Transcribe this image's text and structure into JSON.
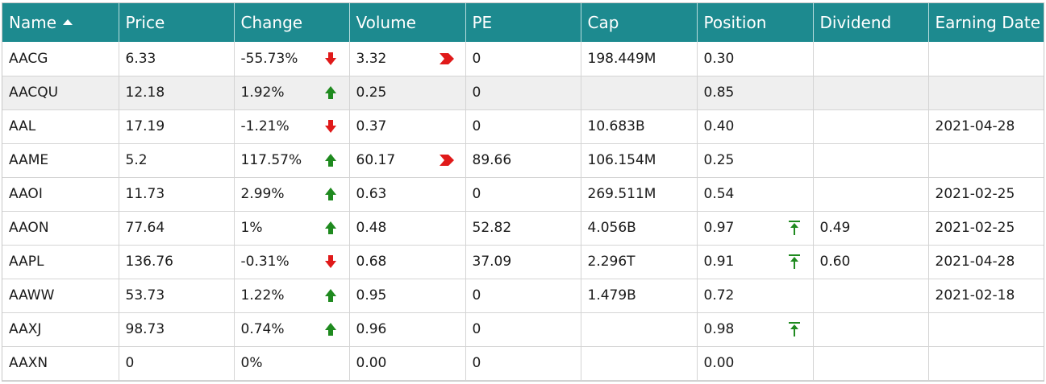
{
  "columns": [
    {
      "label": "Name",
      "sorted": "asc"
    },
    {
      "label": "Price"
    },
    {
      "label": "Change"
    },
    {
      "label": "Volume"
    },
    {
      "label": "PE"
    },
    {
      "label": "Cap"
    },
    {
      "label": "Position"
    },
    {
      "label": "Dividend"
    },
    {
      "label": "Earning Date"
    }
  ],
  "colors": {
    "header_bg": "#1d8a8f",
    "up": "#1f8a1f",
    "down": "#e01a1a",
    "selected_row": "#efefef"
  },
  "rows": [
    {
      "name": "AACG",
      "price": "6.33",
      "change": "-55.73%",
      "change_icon": "down-arrow-icon",
      "volume": "3.32",
      "volume_icon": "chevron-right-icon",
      "pe": "0",
      "cap": "198.449M",
      "position": "0.30",
      "position_icon": "",
      "dividend": "",
      "earning_date": ""
    },
    {
      "name": "AACQU",
      "price": "12.18",
      "change": "1.92%",
      "change_icon": "up-arrow-icon",
      "volume": "0.25",
      "volume_icon": "",
      "pe": "0",
      "cap": "",
      "position": "0.85",
      "position_icon": "",
      "dividend": "",
      "earning_date": "",
      "selected": true
    },
    {
      "name": "AAL",
      "price": "17.19",
      "change": "-1.21%",
      "change_icon": "down-arrow-icon",
      "volume": "0.37",
      "volume_icon": "",
      "pe": "0",
      "cap": "10.683B",
      "position": "0.40",
      "position_icon": "",
      "dividend": "",
      "earning_date": "2021-04-28"
    },
    {
      "name": "AAME",
      "price": "5.2",
      "change": "117.57%",
      "change_icon": "up-arrow-icon",
      "volume": "60.17",
      "volume_icon": "chevron-right-icon",
      "pe": "89.66",
      "cap": "106.154M",
      "position": "0.25",
      "position_icon": "",
      "dividend": "",
      "earning_date": ""
    },
    {
      "name": "AAOI",
      "price": "11.73",
      "change": "2.99%",
      "change_icon": "up-arrow-icon",
      "volume": "0.63",
      "volume_icon": "",
      "pe": "0",
      "cap": "269.511M",
      "position": "0.54",
      "position_icon": "",
      "dividend": "",
      "earning_date": "2021-02-25"
    },
    {
      "name": "AAON",
      "price": "77.64",
      "change": "1%",
      "change_icon": "up-arrow-icon",
      "volume": "0.48",
      "volume_icon": "",
      "pe": "52.82",
      "cap": "4.056B",
      "position": "0.97",
      "position_icon": "arrow-to-top-icon",
      "dividend": "0.49",
      "earning_date": "2021-02-25"
    },
    {
      "name": "AAPL",
      "price": "136.76",
      "change": "-0.31%",
      "change_icon": "down-arrow-icon",
      "volume": "0.68",
      "volume_icon": "",
      "pe": "37.09",
      "cap": "2.296T",
      "position": "0.91",
      "position_icon": "arrow-to-top-icon",
      "dividend": "0.60",
      "earning_date": "2021-04-28"
    },
    {
      "name": "AAWW",
      "price": "53.73",
      "change": "1.22%",
      "change_icon": "up-arrow-icon",
      "volume": "0.95",
      "volume_icon": "",
      "pe": "0",
      "cap": "1.479B",
      "position": "0.72",
      "position_icon": "",
      "dividend": "",
      "earning_date": "2021-02-18"
    },
    {
      "name": "AAXJ",
      "price": "98.73",
      "change": "0.74%",
      "change_icon": "up-arrow-icon",
      "volume": "0.96",
      "volume_icon": "",
      "pe": "0",
      "cap": "",
      "position": "0.98",
      "position_icon": "arrow-to-top-icon",
      "dividend": "",
      "earning_date": ""
    },
    {
      "name": "AAXN",
      "price": "0",
      "change": "0%",
      "change_icon": "",
      "volume": "0.00",
      "volume_icon": "",
      "pe": "0",
      "cap": "",
      "position": "0.00",
      "position_icon": "",
      "dividend": "",
      "earning_date": ""
    }
  ]
}
